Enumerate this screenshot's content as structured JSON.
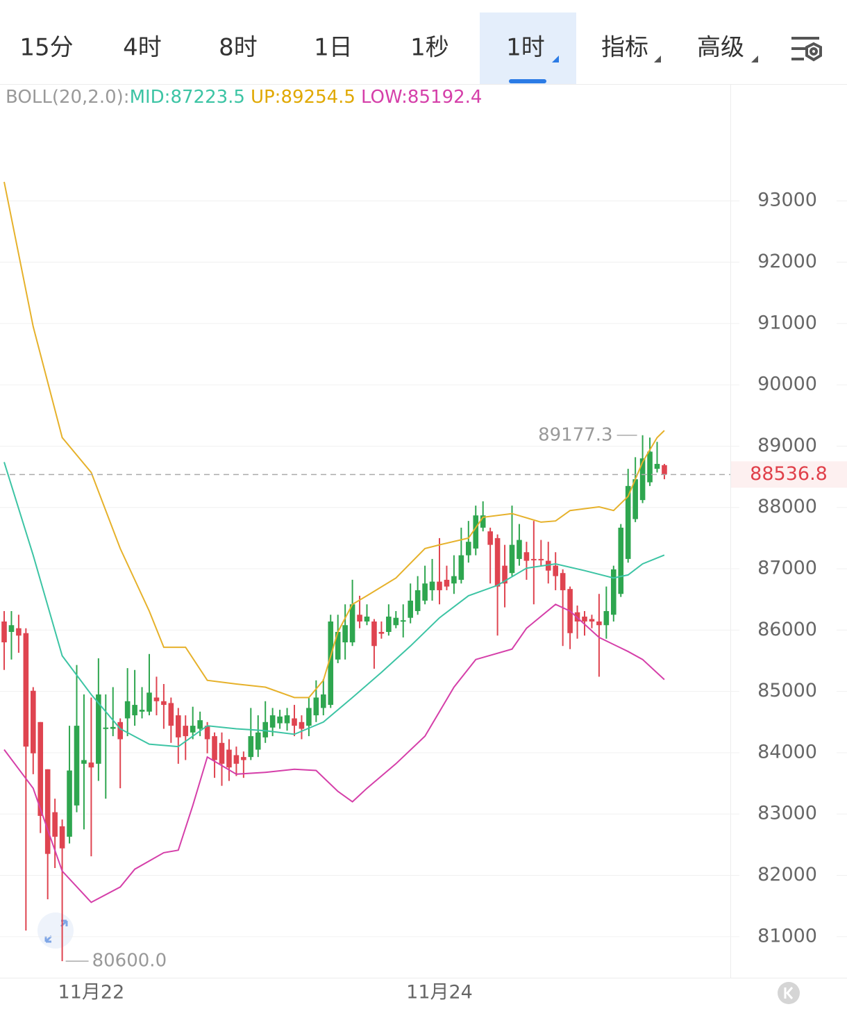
{
  "tabs": [
    "15分",
    "4时",
    "8时",
    "1日",
    "1秒",
    "1时",
    "指标",
    "高级"
  ],
  "active_tab": 5,
  "indicator": {
    "name": "BOLL(20,2.0):",
    "mid": "MID:87223.5",
    "up": "UP:89254.5",
    "low": "LOW:85192.4"
  },
  "chart_data": {
    "type": "candlestick",
    "categories": [
      null,
      null,
      null,
      null,
      null,
      null,
      null,
      null,
      null,
      null,
      null,
      null,
      "11月22",
      null,
      null,
      null,
      null,
      null,
      null,
      null,
      null,
      null,
      null,
      null,
      null,
      null,
      null,
      null,
      null,
      null,
      null,
      null,
      null,
      null,
      null,
      null,
      null,
      null,
      null,
      null,
      null,
      null,
      null,
      null,
      null,
      null,
      null,
      null,
      null,
      null,
      null,
      null,
      null,
      null,
      null,
      null,
      null,
      null,
      null,
      null,
      "11月24",
      null,
      null,
      null,
      null,
      null,
      null,
      null,
      null,
      null,
      null,
      null,
      null,
      null,
      null,
      null,
      null,
      null,
      null,
      null,
      null,
      null,
      null,
      null,
      null,
      null,
      null,
      null,
      null,
      null,
      null,
      null
    ],
    "open": [
      86140,
      85970,
      86030,
      85950,
      85010,
      84500,
      83730,
      83030,
      82800,
      82630,
      83140,
      83820,
      83840,
      83820,
      84390,
      84390,
      84500,
      84560,
      84610,
      84670,
      84670,
      84900,
      84840,
      84810,
      84610,
      84440,
      84330,
      84390,
      84440,
      84270,
      84160,
      84050,
      83960,
      83930,
      83930,
      84050,
      84250,
      84410,
      84480,
      84480,
      84560,
      84500,
      84440,
      84610,
      84730,
      84780,
      85520,
      85800,
      85800,
      86250,
      86140,
      86140,
      85970,
      85970,
      86080,
      86140,
      86200,
      86310,
      86480,
      86650,
      86790,
      86820,
      86760,
      86820,
      87220,
      87330,
      87670,
      87610,
      87500,
      87050,
      86930,
      87160,
      87270,
      87160,
      87160,
      87130,
      87050,
      86930,
      86670,
      86290,
      86220,
      86180,
      86140,
      86080,
      86250,
      86590,
      87160,
      87810,
      88120,
      88410,
      88630,
      88690
    ],
    "high": [
      86310,
      86310,
      86250,
      86030,
      85070,
      84500,
      83730,
      83250,
      82910,
      84440,
      85430,
      84950,
      84900,
      85540,
      84950,
      85070,
      84560,
      85380,
      85350,
      85070,
      85610,
      85240,
      85120,
      84900,
      84730,
      84610,
      84750,
      84670,
      84500,
      84330,
      84330,
      84220,
      84100,
      84020,
      84730,
      84610,
      84840,
      84730,
      84700,
      84730,
      84780,
      84610,
      84900,
      85180,
      85200,
      86250,
      86250,
      86420,
      86820,
      86560,
      86420,
      86180,
      86140,
      86420,
      86310,
      86420,
      86760,
      86880,
      87050,
      87160,
      87500,
      87050,
      87220,
      87670,
      87780,
      88030,
      88100,
      87670,
      87560,
      87390,
      88030,
      87730,
      87440,
      87780,
      87470,
      87440,
      87270,
      86990,
      86710,
      86400,
      86310,
      86250,
      86590,
      86710,
      87050,
      87730,
      88630,
      88820,
      89177.3,
      89140,
      89070,
      88710
    ],
    "low": [
      85350,
      85520,
      85630,
      81100,
      83650,
      82690,
      81610,
      82120,
      80600,
      82520,
      83030,
      82750,
      82310,
      83540,
      83250,
      84270,
      83420,
      84270,
      84440,
      84560,
      84610,
      84610,
      84390,
      84160,
      83820,
      83880,
      84220,
      84270,
      83990,
      83590,
      83460,
      83540,
      83620,
      83590,
      83880,
      83930,
      84160,
      84270,
      84390,
      84360,
      84270,
      84220,
      84270,
      84500,
      84610,
      84730,
      85460,
      85520,
      85740,
      86030,
      86080,
      85370,
      85860,
      85910,
      86030,
      85880,
      86110,
      86250,
      86420,
      86480,
      86420,
      86650,
      86590,
      86760,
      87100,
      87220,
      87610,
      86760,
      85910,
      86370,
      86880,
      87050,
      86820,
      86420,
      87050,
      86760,
      86650,
      85740,
      85690,
      85860,
      85910,
      86030,
      85240,
      85860,
      86140,
      86540,
      87100,
      87760,
      88070,
      88350,
      88570,
      88460
    ],
    "close": [
      85800,
      86080,
      85910,
      84100,
      83990,
      82970,
      82350,
      82630,
      82440,
      83710,
      84440,
      83880,
      83760,
      84950,
      84410,
      84420,
      84220,
      84840,
      84780,
      84700,
      84980,
      84840,
      84780,
      84440,
      84250,
      84270,
      84440,
      84530,
      84220,
      83880,
      83820,
      83760,
      83820,
      83880,
      84270,
      84330,
      84500,
      84610,
      84590,
      84610,
      84440,
      84390,
      84730,
      84900,
      84950,
      86140,
      85970,
      86080,
      86420,
      86140,
      86220,
      85740,
      85940,
      86220,
      86200,
      86160,
      86480,
      86650,
      86760,
      86790,
      86650,
      86710,
      86880,
      87220,
      87440,
      87870,
      87870,
      87390,
      86710,
      86760,
      87390,
      87470,
      87130,
      87150,
      87150,
      86970,
      86880,
      86650,
      85950,
      86140,
      86140,
      86140,
      86080,
      86310,
      86990,
      87670,
      88350,
      88460,
      88800,
      88910,
      88710,
      88536.8
    ],
    "up_color": "#2ea64f",
    "down_color": "#df4450",
    "overlays": [
      {
        "color": "#e6b12a",
        "x": [
          0,
          4,
          8,
          12,
          16,
          20,
          22,
          25,
          28,
          32,
          36,
          40,
          42,
          44,
          46,
          48,
          50,
          54,
          58,
          60,
          64,
          66,
          70,
          74,
          76,
          78,
          82,
          84,
          86,
          88,
          90,
          91
        ],
        "values": [
          93310,
          90950,
          89140,
          88570,
          87330,
          86310,
          85720,
          85720,
          85180,
          85120,
          85070,
          84900,
          84900,
          85180,
          85970,
          86420,
          86560,
          86850,
          87330,
          87390,
          87500,
          87840,
          87900,
          87760,
          87780,
          87950,
          88010,
          87950,
          88180,
          88740,
          89140,
          89254.5
        ]
      },
      {
        "color": "#3cc4a4",
        "x": [
          0,
          4,
          8,
          12,
          16,
          20,
          24,
          28,
          32,
          36,
          40,
          44,
          48,
          52,
          56,
          60,
          64,
          68,
          72,
          76,
          80,
          84,
          86,
          88,
          91
        ],
        "values": [
          88740,
          87220,
          85580,
          84950,
          84390,
          84140,
          84100,
          84440,
          84390,
          84360,
          84300,
          84500,
          84900,
          85310,
          85740,
          86200,
          86560,
          86730,
          87010,
          87080,
          86970,
          86850,
          86900,
          87080,
          87223.5
        ]
      },
      {
        "color": "#d53fa9",
        "x": [
          0,
          4,
          8,
          12,
          16,
          18,
          22,
          24,
          26,
          28,
          32,
          36,
          40,
          43,
          46,
          48,
          50,
          54,
          58,
          62,
          65,
          70,
          72,
          76,
          78,
          82,
          86,
          88,
          91
        ],
        "values": [
          84050,
          83420,
          82070,
          81560,
          81810,
          82100,
          82370,
          82410,
          83140,
          83930,
          83650,
          83680,
          83730,
          83710,
          83370,
          83200,
          83420,
          83820,
          84270,
          85070,
          85520,
          85690,
          86030,
          86420,
          86310,
          85880,
          85650,
          85520,
          85192.4
        ]
      }
    ],
    "high_label": 89177.3,
    "low_label": {
      "value": 80600,
      "label": "80600.0"
    },
    "last_price": 88536.8,
    "ylim": [
      80330,
      94860
    ],
    "yticks": [
      81000,
      82000,
      83000,
      84000,
      85000,
      86000,
      87000,
      88000,
      89000,
      90000,
      91000,
      92000,
      93000
    ],
    "grid": true
  }
}
